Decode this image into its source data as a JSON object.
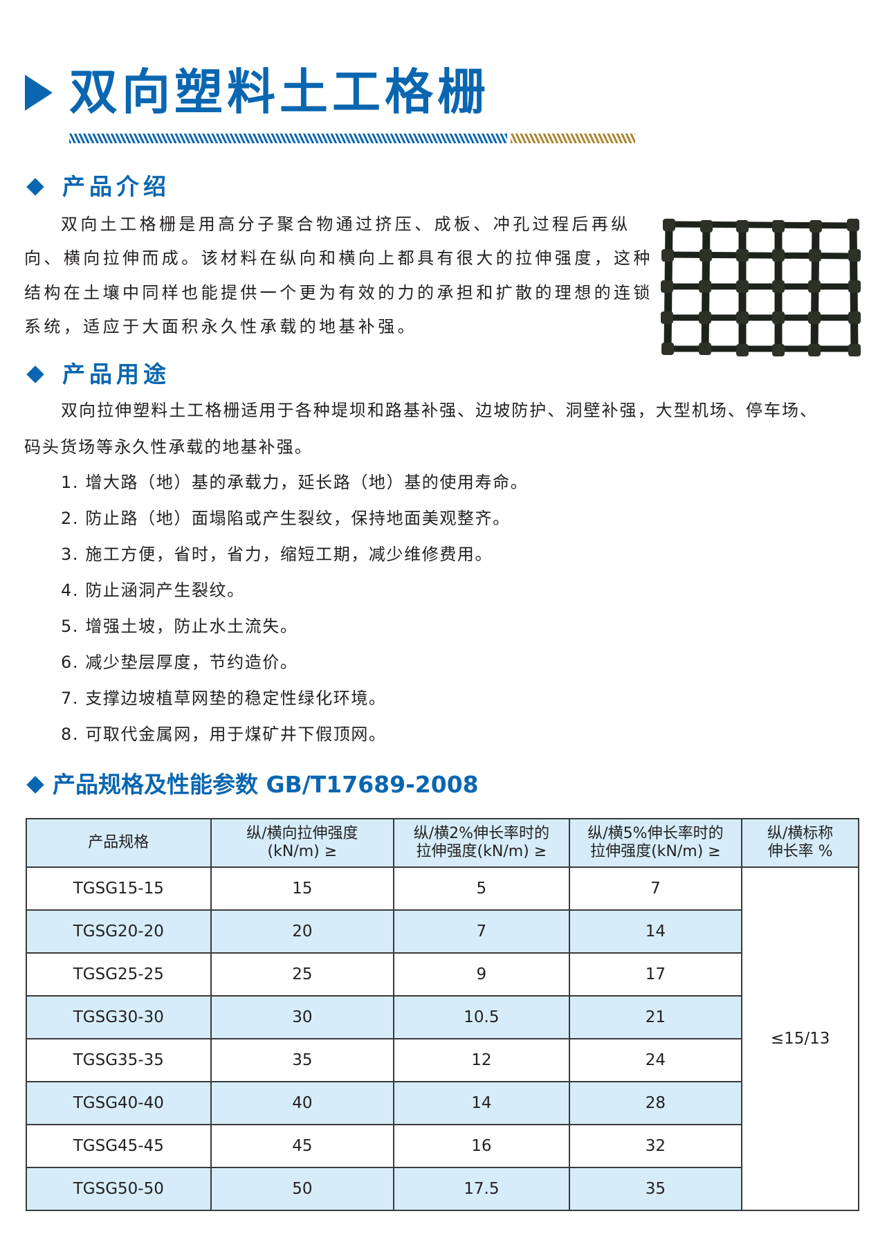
{
  "title": "双向塑料土工格栅",
  "colors": {
    "brand_blue": "#0a66b0",
    "accent_gold": "#a98530",
    "table_row_alt": "#d6edf9"
  },
  "intro": {
    "heading": "产品介绍",
    "lines": [
      "双向土工格栅是用高分子聚合物通过挤压、成板、冲孔过程后再纵",
      "向、横向拉伸而成。该材料在纵向和横向上都具有很大的拉伸强度，这种",
      "结构在土壤中同样也能提供一个更为有效的力的承担和扩散的理想的连锁",
      "系统，适应于大面积永久性承载的地基补强。"
    ]
  },
  "usage": {
    "heading": "产品用途",
    "lines": [
      "双向拉伸塑料土工格栅适用于各种堤坝和路基补强、边坡防护、洞壁补强，大型机场、停车场、",
      "码头货场等永久性承载的地基补强。"
    ],
    "items": [
      "1. 增大路（地）基的承载力，延长路（地）基的使用寿命。",
      "2. 防止路（地）面塌陷或产生裂纹，保持地面美观整齐。",
      "3. 施工方便，省时，省力，缩短工期，减少维修费用。",
      "4. 防止涵洞产生裂纹。",
      "5. 增强土坡，防止水土流失。",
      "6. 减少垫层厚度，节约造价。",
      "7. 支撑边坡植草网垫的稳定性绿化环境。",
      "8. 可取代金属网，用于煤矿井下假顶网。"
    ]
  },
  "specs": {
    "heading": "产品规格及性能参数 GB/T17689-2008",
    "headers": [
      [
        "产品规格",
        ""
      ],
      [
        "纵/横向拉伸强度",
        "(kN/m) ≥"
      ],
      [
        "纵/横2%伸长率时的",
        "拉伸强度(kN/m) ≥"
      ],
      [
        "纵/横5%伸长率时的",
        "拉伸强度(kN/m) ≥"
      ],
      [
        "纵/横标称",
        "伸长率 %"
      ]
    ],
    "rows": [
      [
        "TGSG15-15",
        "15",
        "5",
        "7"
      ],
      [
        "TGSG20-20",
        "20",
        "7",
        "14"
      ],
      [
        "TGSG25-25",
        "25",
        "9",
        "17"
      ],
      [
        "TGSG30-30",
        "30",
        "10.5",
        "21"
      ],
      [
        "TGSG35-35",
        "35",
        "12",
        "24"
      ],
      [
        "TGSG40-40",
        "40",
        "14",
        "28"
      ],
      [
        "TGSG45-45",
        "45",
        "16",
        "32"
      ],
      [
        "TGSG50-50",
        "50",
        "17.5",
        "35"
      ]
    ],
    "elongation": "≤15/13"
  }
}
